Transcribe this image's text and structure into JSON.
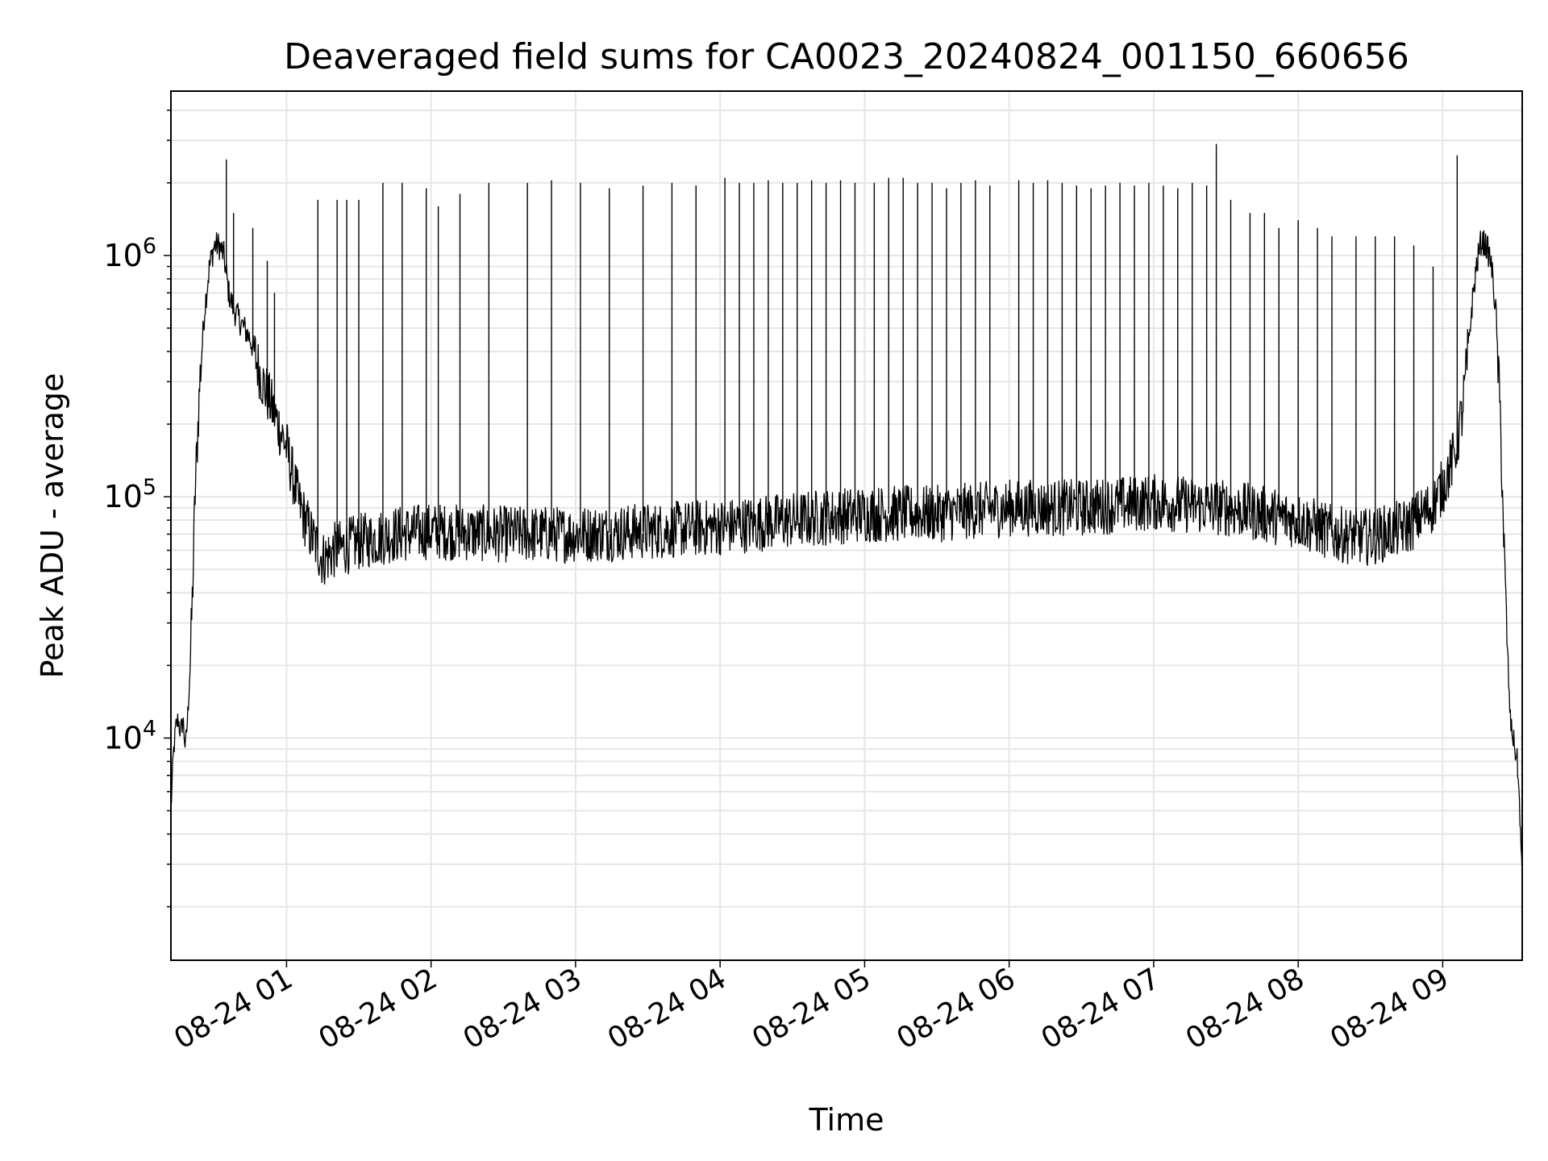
{
  "chart_data": {
    "type": "line",
    "title": "Deaveraged field sums for CA0023_20240824_001150_660656",
    "xlabel": "Time",
    "ylabel": "Peak ADU - average",
    "yscale": "log",
    "ylim": [
      1200,
      4800000
    ],
    "xlim": [
      "2024-08-24 00:12",
      "2024-08-24 09:33"
    ],
    "grid": true,
    "x_ticks": [
      {
        "value": "2024-08-24 01:00",
        "label": "08-24 01"
      },
      {
        "value": "2024-08-24 02:00",
        "label": "08-24 02"
      },
      {
        "value": "2024-08-24 03:00",
        "label": "08-24 03"
      },
      {
        "value": "2024-08-24 04:00",
        "label": "08-24 04"
      },
      {
        "value": "2024-08-24 05:00",
        "label": "08-24 05"
      },
      {
        "value": "2024-08-24 06:00",
        "label": "08-24 06"
      },
      {
        "value": "2024-08-24 07:00",
        "label": "08-24 07"
      },
      {
        "value": "2024-08-24 08:00",
        "label": "08-24 08"
      },
      {
        "value": "2024-08-24 09:00",
        "label": "08-24 09"
      }
    ],
    "y_ticks": [
      {
        "value": 10000,
        "base": "10",
        "exp": "4"
      },
      {
        "value": 100000,
        "base": "10",
        "exp": "5"
      },
      {
        "value": 1000000,
        "base": "10",
        "exp": "6"
      }
    ],
    "series": [
      {
        "color": "#000000",
        "x": [
          "2024-08-24 00:12",
          "2024-08-24 00:13",
          "2024-08-24 00:14",
          "2024-08-24 00:15",
          "2024-08-24 00:16",
          "2024-08-24 00:17",
          "2024-08-24 00:18",
          "2024-08-24 00:19",
          "2024-08-24 00:20",
          "2024-08-24 00:21",
          "2024-08-24 00:22",
          "2024-08-24 00:24",
          "2024-08-24 00:26",
          "2024-08-24 00:28",
          "2024-08-24 00:30",
          "2024-08-24 00:32",
          "2024-08-24 00:34",
          "2024-08-24 00:36",
          "2024-08-24 00:38",
          "2024-08-24 00:40",
          "2024-08-24 00:45",
          "2024-08-24 00:50",
          "2024-08-24 00:55",
          "2024-08-24 01:00",
          "2024-08-24 01:05",
          "2024-08-24 01:10",
          "2024-08-24 01:15",
          "2024-08-24 01:20",
          "2024-08-24 01:30",
          "2024-08-24 01:45",
          "2024-08-24 02:00",
          "2024-08-24 02:30",
          "2024-08-24 03:00",
          "2024-08-24 03:30",
          "2024-08-24 04:00",
          "2024-08-24 04:30",
          "2024-08-24 05:00",
          "2024-08-24 05:30",
          "2024-08-24 06:00",
          "2024-08-24 06:30",
          "2024-08-24 07:00",
          "2024-08-24 07:30",
          "2024-08-24 08:00",
          "2024-08-24 08:15",
          "2024-08-24 08:30",
          "2024-08-24 08:45",
          "2024-08-24 08:55",
          "2024-08-24 09:00",
          "2024-08-24 09:05",
          "2024-08-24 09:08",
          "2024-08-24 09:10",
          "2024-08-24 09:12",
          "2024-08-24 09:14",
          "2024-08-24 09:16",
          "2024-08-24 09:18",
          "2024-08-24 09:20",
          "2024-08-24 09:22",
          "2024-08-24 09:24",
          "2024-08-24 09:26",
          "2024-08-24 09:28",
          "2024-08-24 09:30",
          "2024-08-24 09:31",
          "2024-08-24 09:32",
          "2024-08-24 09:33"
        ],
        "y": [
          5000,
          8500,
          11000,
          12000,
          10500,
          12000,
          9000,
          12500,
          20000,
          40000,
          100000,
          300000,
          600000,
          900000,
          1100000,
          1100000,
          1000000,
          700000,
          600000,
          550000,
          450000,
          300000,
          220000,
          160000,
          95000,
          70000,
          55000,
          60000,
          65000,
          70000,
          72000,
          70000,
          70000,
          72000,
          75000,
          80000,
          85000,
          85000,
          90000,
          90000,
          95000,
          90000,
          80000,
          70000,
          68000,
          75000,
          90000,
          110000,
          150000,
          220000,
          350000,
          600000,
          900000,
          1150000,
          1100000,
          950000,
          600000,
          200000,
          40000,
          12000,
          9000,
          8000,
          5000,
          2500
        ]
      }
    ],
    "spikes": {
      "x": [
        "2024-08-24 00:35",
        "2024-08-24 00:38",
        "2024-08-24 00:46",
        "2024-08-24 00:52",
        "2024-08-24 00:55",
        "2024-08-24 01:13",
        "2024-08-24 01:21",
        "2024-08-24 01:25",
        "2024-08-24 01:30",
        "2024-08-24 01:40",
        "2024-08-24 01:48",
        "2024-08-24 01:58",
        "2024-08-24 02:03",
        "2024-08-24 02:12",
        "2024-08-24 02:24",
        "2024-08-24 02:40",
        "2024-08-24 02:50",
        "2024-08-24 03:02",
        "2024-08-24 03:14",
        "2024-08-24 03:28",
        "2024-08-24 03:40",
        "2024-08-24 03:50",
        "2024-08-24 04:02",
        "2024-08-24 04:08",
        "2024-08-24 04:14",
        "2024-08-24 04:20",
        "2024-08-24 04:26",
        "2024-08-24 04:32",
        "2024-08-24 04:38",
        "2024-08-24 04:44",
        "2024-08-24 04:50",
        "2024-08-24 04:56",
        "2024-08-24 05:04",
        "2024-08-24 05:10",
        "2024-08-24 05:16",
        "2024-08-24 05:22",
        "2024-08-24 05:28",
        "2024-08-24 05:34",
        "2024-08-24 05:40",
        "2024-08-24 05:46",
        "2024-08-24 05:52",
        "2024-08-24 06:04",
        "2024-08-24 06:10",
        "2024-08-24 06:16",
        "2024-08-24 06:22",
        "2024-08-24 06:28",
        "2024-08-24 06:34",
        "2024-08-24 06:40",
        "2024-08-24 06:46",
        "2024-08-24 06:52",
        "2024-08-24 06:58",
        "2024-08-24 07:04",
        "2024-08-24 07:10",
        "2024-08-24 07:16",
        "2024-08-24 07:22",
        "2024-08-24 07:26",
        "2024-08-24 07:32",
        "2024-08-24 07:40",
        "2024-08-24 07:46",
        "2024-08-24 07:52",
        "2024-08-24 08:00",
        "2024-08-24 08:08",
        "2024-08-24 08:14",
        "2024-08-24 08:24",
        "2024-08-24 08:32",
        "2024-08-24 08:40",
        "2024-08-24 08:48",
        "2024-08-24 08:56",
        "2024-08-24 09:06"
      ],
      "y": [
        2500000,
        1500000,
        1300000,
        950000,
        700000,
        1700000,
        1700000,
        1700000,
        1700000,
        2000000,
        2000000,
        1900000,
        1600000,
        1800000,
        2000000,
        2000000,
        2050000,
        2000000,
        1900000,
        1950000,
        2000000,
        1950000,
        2100000,
        2000000,
        2000000,
        2050000,
        2000000,
        2000000,
        2050000,
        2000000,
        2050000,
        2000000,
        2000000,
        2100000,
        2100000,
        2000000,
        2000000,
        1900000,
        2000000,
        2050000,
        1950000,
        2050000,
        2000000,
        2050000,
        2000000,
        1950000,
        1900000,
        1950000,
        2000000,
        1950000,
        2000000,
        1950000,
        1900000,
        2000000,
        1950000,
        2900000,
        1700000,
        1500000,
        1500000,
        1300000,
        1400000,
        1300000,
        1200000,
        1200000,
        1200000,
        1200000,
        1100000,
        900000,
        2600000
      ]
    }
  }
}
